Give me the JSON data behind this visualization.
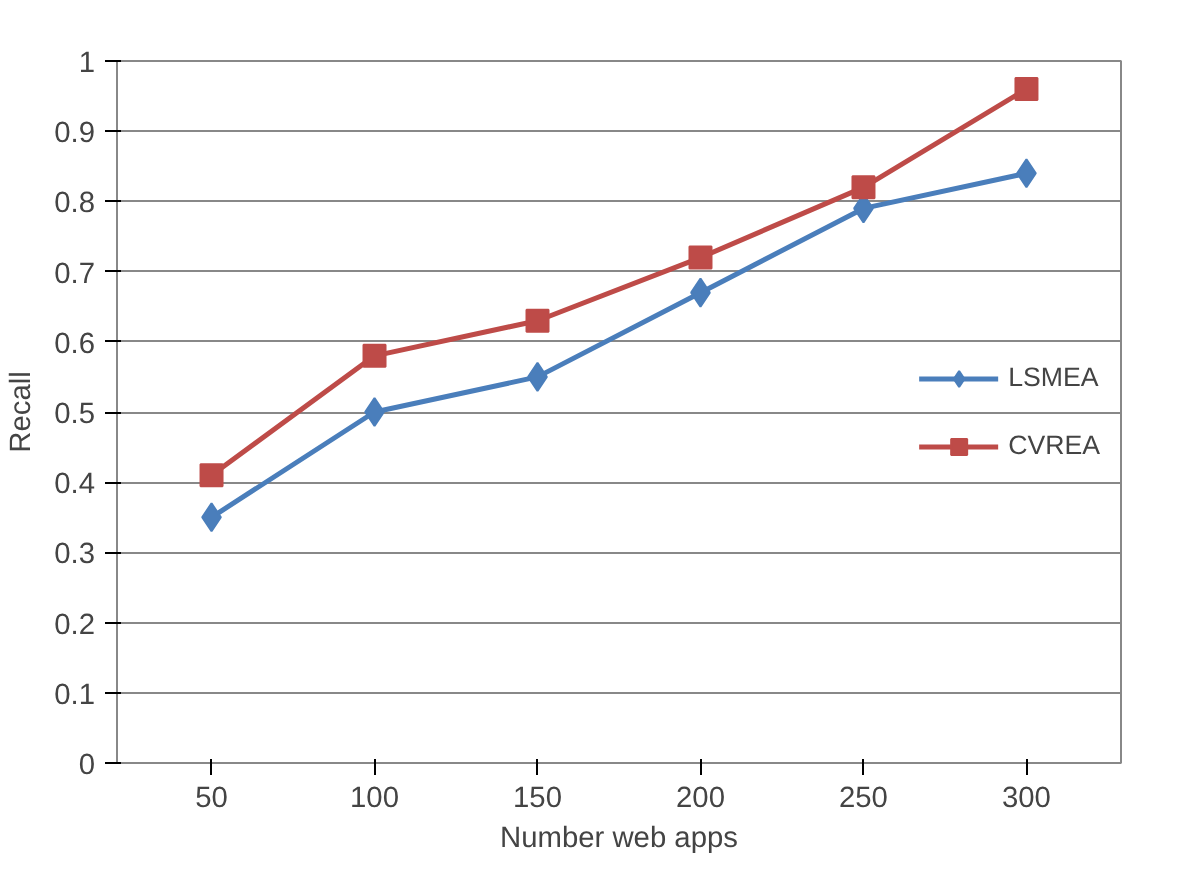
{
  "chart_data": {
    "type": "line",
    "xlabel": "Number web apps",
    "ylabel": "Recall",
    "categories": [
      "50",
      "100",
      "150",
      "200",
      "250",
      "300"
    ],
    "series": [
      {
        "name": "LSMEA",
        "color": "#4a7ebb",
        "marker": "diamond",
        "values": [
          0.35,
          0.5,
          0.55,
          0.67,
          0.79,
          0.84
        ]
      },
      {
        "name": "CVREA",
        "color": "#be4b48",
        "marker": "square",
        "values": [
          0.41,
          0.58,
          0.63,
          0.72,
          0.82,
          0.96
        ]
      }
    ],
    "ylim": [
      0,
      1
    ],
    "yticks": [
      0,
      0.1,
      0.2,
      0.3,
      0.4,
      0.5,
      0.6,
      0.7,
      0.8,
      0.9,
      1
    ],
    "grid": "y",
    "legend": "right",
    "line_style": "solid"
  }
}
